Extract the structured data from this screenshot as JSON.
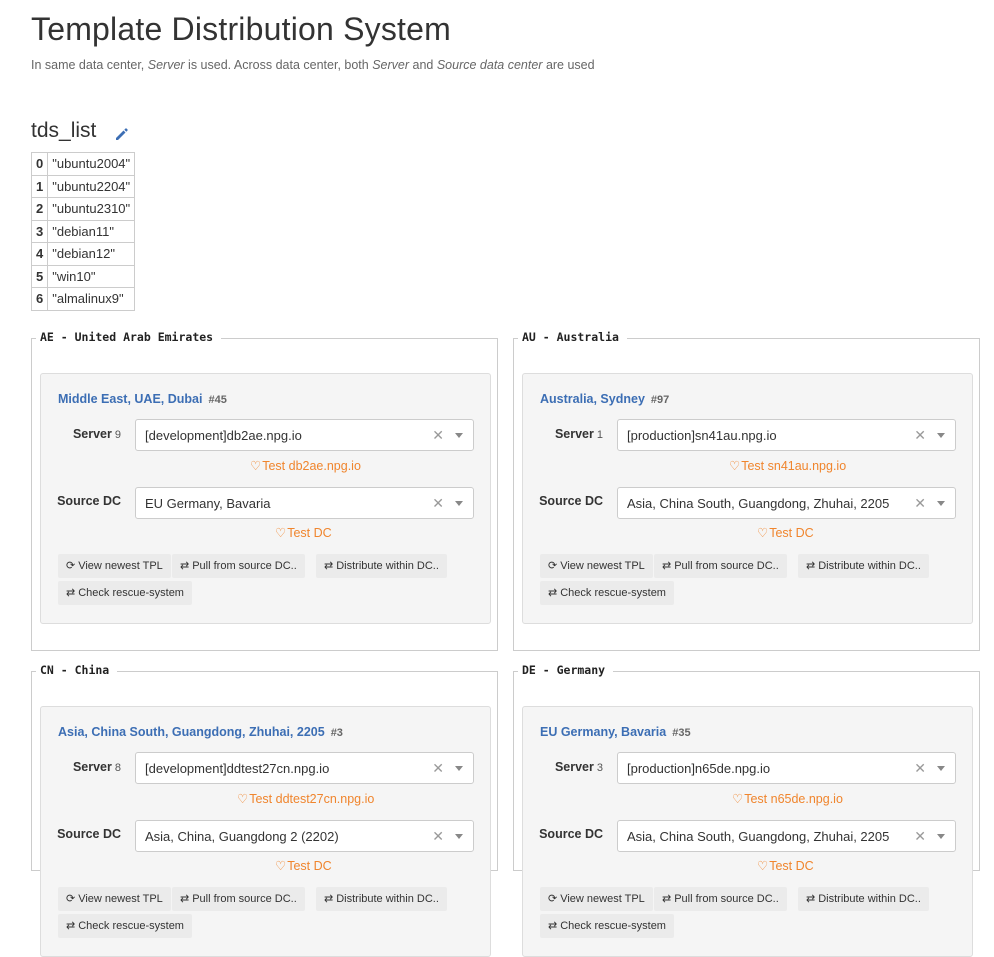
{
  "header": {
    "title": "Template Distribution System",
    "subtitle_parts": {
      "p1": "In same data center, ",
      "p2": "Server",
      "p3": " is used. Across data center, both ",
      "p4": "Server",
      "p5": " and ",
      "p6": "Source data center",
      "p7": " are used"
    }
  },
  "tds_list": {
    "title": "tds_list",
    "rows": [
      {
        "index": "0",
        "value": "\"ubuntu2004\""
      },
      {
        "index": "1",
        "value": "\"ubuntu2204\""
      },
      {
        "index": "2",
        "value": "\"ubuntu2310\""
      },
      {
        "index": "3",
        "value": "\"debian11\""
      },
      {
        "index": "4",
        "value": "\"debian12\""
      },
      {
        "index": "5",
        "value": "\"win10\""
      },
      {
        "index": "6",
        "value": "\"almalinux9\""
      }
    ]
  },
  "labels": {
    "server": "Server",
    "source_dc": "Source DC",
    "test_dc": "Test DC",
    "view_newest": "View newest TPL",
    "pull_source": "Pull from source DC..",
    "distribute": "Distribute within DC..",
    "check_rescue": "Check rescue-system"
  },
  "regions": [
    {
      "legend": "AE - United Arab Emirates",
      "dc_name": "Middle East, UAE, Dubai",
      "dc_id": "#45",
      "server_count": "9",
      "server_value": "[development]db2ae.npg.io",
      "test_server": "Test db2ae.npg.io",
      "source_dc_value": "EU Germany, Bavaria"
    },
    {
      "legend": "AU - Australia",
      "dc_name": "Australia, Sydney",
      "dc_id": "#97",
      "server_count": "1",
      "server_value": "[production]sn41au.npg.io",
      "test_server": "Test sn41au.npg.io",
      "source_dc_value": "Asia, China South, Guangdong, Zhuhai, 2205"
    },
    {
      "legend": "CN - China",
      "dc_name": "Asia, China South, Guangdong, Zhuhai, 2205",
      "dc_id": "#3",
      "server_count": "8",
      "server_value": "[development]ddtest27cn.npg.io",
      "test_server": "Test ddtest27cn.npg.io",
      "source_dc_value": "Asia, China, Guangdong 2 (2202)"
    },
    {
      "legend": "DE - Germany",
      "dc_name": "EU Germany, Bavaria",
      "dc_id": "#35",
      "server_count": "3",
      "server_value": "[production]n65de.npg.io",
      "test_server": "Test n65de.npg.io",
      "source_dc_value": "Asia, China South, Guangdong, Zhuhai, 2205"
    }
  ],
  "colors": {
    "link_blue": "#3c6eb4",
    "test_orange": "#f0852d"
  },
  "icons": {
    "edit": "pencil-icon",
    "test": "heartbeat-icon",
    "refresh": "refresh-icon",
    "transfer": "exchange-icon",
    "clear": "close-icon",
    "dropdown": "caret-down-icon"
  }
}
